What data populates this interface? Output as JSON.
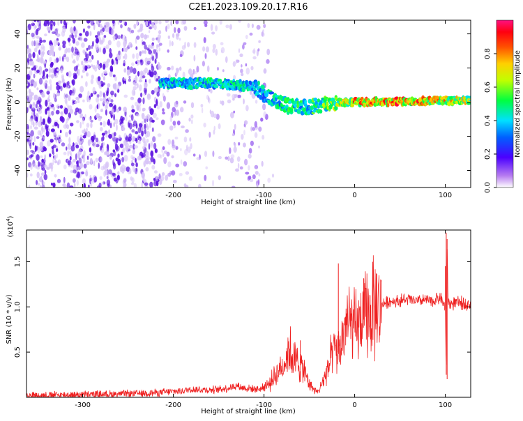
{
  "title": "C2E1.2023.109.20.17.R16",
  "colors": {
    "snr_line": "#ef2020",
    "spectrogram_faint": "#d6c2f7",
    "spectrogram_mid": "#9a62f0",
    "spectrogram_strong": "#5a10e0",
    "axis": "#000000"
  },
  "chart_data": [
    {
      "type": "heatmap",
      "xlabel": "Height of straight line (km)",
      "ylabel": "Frequency (Hz)",
      "xlim": [
        -362,
        128
      ],
      "ylim": [
        -50,
        48
      ],
      "xticks": [
        -300,
        -200,
        -100,
        0,
        100
      ],
      "xtick_labels": [
        "-300",
        "-200",
        "-100",
        "0",
        "100"
      ],
      "yticks": [
        -40,
        -20,
        0,
        20,
        40
      ],
      "ytick_labels": [
        "-40",
        "-20",
        "0",
        "20",
        "40"
      ],
      "colorbar": {
        "label": "Normalized spectral amplitude",
        "range": [
          0,
          1
        ],
        "ticks": [
          0.0,
          0.2,
          0.4,
          0.6,
          0.8
        ],
        "tick_labels": [
          "0.0",
          "0.2",
          "0.4",
          "0.6",
          "0.8"
        ],
        "colormap": "rainbow (white-violet-blue-cyan-green-yellow-red-magenta)"
      },
      "features": {
        "ridge_path": [
          [
            -215,
            11
          ],
          [
            -150,
            11
          ],
          [
            -110,
            9
          ],
          [
            -95,
            3
          ],
          [
            -75,
            -2
          ],
          [
            -50,
            -3
          ],
          [
            -30,
            -1
          ],
          [
            -10,
            0
          ],
          [
            0,
            0
          ],
          [
            128,
            1
          ]
        ],
        "ridge_amplitude": [
          [
            -215,
            0.45
          ],
          [
            -150,
            0.5
          ],
          [
            -110,
            0.45
          ],
          [
            -80,
            0.5
          ],
          [
            -40,
            0.55
          ],
          [
            -10,
            0.75
          ],
          [
            0,
            0.85
          ],
          [
            60,
            0.9
          ],
          [
            128,
            0.7
          ]
        ],
        "broadband_noise_x_range": [
          -362,
          -100
        ]
      }
    },
    {
      "type": "line",
      "xlabel": "Height of straight line (km)",
      "ylabel": "SNR (10 * v/v)",
      "y_multiplier_label": "(x10",
      "y_multiplier_exponent": "4",
      "y_multiplier_close": ")",
      "xlim": [
        -362,
        128
      ],
      "ylim": [
        0,
        18500
      ],
      "xticks": [
        -300,
        -200,
        -100,
        0,
        100
      ],
      "xtick_labels": [
        "-300",
        "-200",
        "-100",
        "0",
        "100"
      ],
      "yticks": [
        5000,
        10000,
        15000
      ],
      "ytick_labels": [
        "0.5",
        "1.0",
        "1.5"
      ],
      "series": [
        {
          "x": [
            -362,
            -300,
            -250,
            -220,
            -190,
            -180,
            -160,
            -140,
            -130,
            -125,
            -120,
            -105,
            -95,
            -85,
            -78,
            -72,
            -68,
            -62,
            -56,
            -50,
            -45,
            -40,
            -35,
            -28,
            -22,
            -18,
            -14,
            -10,
            -5,
            0,
            5,
            10,
            15,
            20,
            25,
            30,
            35,
            40,
            50,
            60,
            70,
            80,
            85,
            90,
            95,
            100,
            101,
            102,
            103,
            105,
            110,
            120,
            128
          ],
          "y": [
            200,
            300,
            400,
            500,
            700,
            900,
            800,
            1000,
            1300,
            1100,
            1000,
            900,
            1400,
            2800,
            3600,
            5500,
            4200,
            3800,
            3000,
            1600,
            800,
            600,
            1800,
            3600,
            5500,
            4800,
            6200,
            8100,
            8300,
            7500,
            8000,
            8600,
            9000,
            9600,
            9900,
            10300,
            10500,
            10600,
            10700,
            10800,
            10600,
            10800,
            10500,
            10900,
            11000,
            9800,
            2500,
            17500,
            10500,
            10300,
            10400,
            10400,
            10300
          ]
        }
      ],
      "spikes": [
        {
          "x": -60,
          "y": 6300
        },
        {
          "x": -18,
          "y": 14800
        },
        {
          "x": 10,
          "y": 13100
        },
        {
          "x": 100,
          "y": 14500
        },
        {
          "x": 101,
          "y": 18200
        },
        {
          "x": 102,
          "y": 2000
        }
      ]
    }
  ]
}
